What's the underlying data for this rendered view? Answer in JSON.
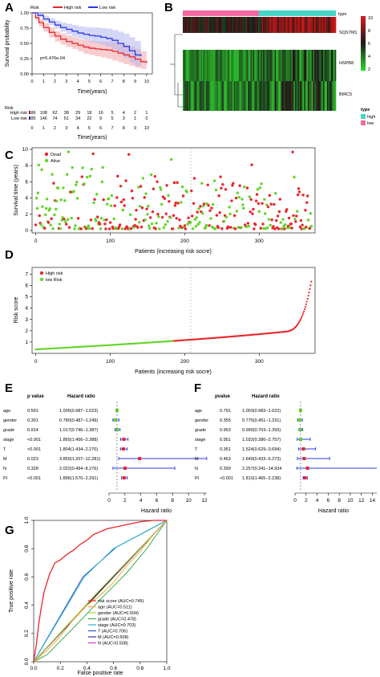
{
  "chart_data": [
    {
      "panel": "A",
      "type": "line",
      "ylabel": "Survival probability",
      "xlabel": "Time(years)",
      "legend_title": "Risk",
      "pvalue_text": "p=5.476e-04",
      "xticks": [
        0,
        1,
        2,
        3,
        4,
        5,
        6,
        7,
        8,
        9,
        10
      ],
      "yticks": [
        "0.00",
        "0.25",
        "0.50",
        "0.75",
        "1.00"
      ],
      "xlim": [
        0,
        10.5
      ],
      "ylim": [
        0,
        1
      ],
      "series": [
        {
          "name": "High risk",
          "color": "#e8262c",
          "band_color": "#f4a3a6",
          "x": [
            0,
            0.3,
            0.6,
            1,
            1.5,
            2,
            2.5,
            3,
            3.5,
            4,
            4.5,
            5,
            5.5,
            6,
            6.5,
            7,
            7.5,
            8,
            8.5,
            9,
            9.5,
            10
          ],
          "y": [
            1,
            0.92,
            0.84,
            0.76,
            0.68,
            0.62,
            0.57,
            0.53,
            0.5,
            0.47,
            0.44,
            0.42,
            0.41,
            0.4,
            0.39,
            0.37,
            0.34,
            0.31,
            0.28,
            0.24,
            0.2,
            0.18
          ],
          "lo": [
            1,
            0.88,
            0.78,
            0.69,
            0.6,
            0.53,
            0.48,
            0.44,
            0.41,
            0.37,
            0.33,
            0.31,
            0.29,
            0.27,
            0.25,
            0.22,
            0.19,
            0.16,
            0.13,
            0.1,
            0.08,
            0.07
          ],
          "hi": [
            1,
            0.96,
            0.9,
            0.83,
            0.76,
            0.7,
            0.66,
            0.63,
            0.6,
            0.57,
            0.55,
            0.54,
            0.53,
            0.53,
            0.53,
            0.52,
            0.5,
            0.48,
            0.45,
            0.41,
            0.37,
            0.33
          ]
        },
        {
          "name": "Low risk",
          "color": "#2a3ae0",
          "band_color": "#b3b7f3",
          "x": [
            0,
            0.5,
            1,
            1.5,
            2,
            2.5,
            3,
            3.5,
            4,
            4.5,
            5,
            5.5,
            6,
            6.5,
            7,
            7.5,
            8,
            8.5,
            9,
            9.5
          ],
          "y": [
            1,
            0.96,
            0.9,
            0.85,
            0.8,
            0.76,
            0.73,
            0.7,
            0.67,
            0.65,
            0.63,
            0.62,
            0.6,
            0.58,
            0.55,
            0.5,
            0.45,
            0.38,
            0.31,
            0.29
          ],
          "lo": [
            1,
            0.93,
            0.86,
            0.8,
            0.74,
            0.69,
            0.65,
            0.61,
            0.58,
            0.55,
            0.52,
            0.5,
            0.47,
            0.44,
            0.4,
            0.33,
            0.26,
            0.19,
            0.13,
            0.11
          ],
          "hi": [
            1,
            0.99,
            0.95,
            0.91,
            0.87,
            0.84,
            0.82,
            0.8,
            0.78,
            0.77,
            0.76,
            0.76,
            0.75,
            0.74,
            0.72,
            0.69,
            0.66,
            0.6,
            0.54,
            0.52
          ]
        }
      ],
      "risk_table": {
        "title": "Risk",
        "xlabel": "Time(years)",
        "rows": [
          {
            "name": "High risk",
            "color": "#e8262c",
            "values": [
              "186",
              "108",
              "62",
              "38",
              "29",
              "18",
              "16",
              "5",
              "4",
              "2",
              "1"
            ]
          },
          {
            "name": "Low risk",
            "color": "#2a3ae0",
            "values": [
              "185",
              "146",
              "74",
              "51",
              "34",
              "22",
              "9",
              "5",
              "3",
              "1",
              "0"
            ]
          }
        ]
      }
    },
    {
      "panel": "B",
      "type": "heatmap",
      "genes": [
        "SQSTM1",
        "HSPB8",
        "BIRC5"
      ],
      "legend_title": "type",
      "colorbar_ticks": [
        "10",
        "8",
        "6",
        "4",
        "2"
      ],
      "type_legend_title": "type",
      "type_levels": [
        {
          "name": "high",
          "color": "#48d4c4"
        },
        {
          "name": "low",
          "color": "#f06aa0"
        }
      ],
      "color_low": "#2ed82e",
      "color_high": "#d81e1e"
    },
    {
      "panel": "C",
      "type": "scatter",
      "ylabel": "Survival time (years)",
      "xlabel": "Patients (increasing risk socre)",
      "xticks": [
        0,
        100,
        200,
        300
      ],
      "yticks": [
        0,
        2,
        4,
        6,
        8,
        10
      ],
      "xlim": [
        -5,
        375
      ],
      "ylim": [
        -0.3,
        10.2
      ],
      "legend": [
        {
          "name": "Dead",
          "color": "#e8262c"
        },
        {
          "name": "Alive",
          "color": "#64d42a"
        }
      ],
      "n_patients": 371
    },
    {
      "panel": "D",
      "type": "scatter",
      "ylabel": "Risk score",
      "xlabel": "Patients (increasing risk socre)",
      "xticks": [
        0,
        100,
        200,
        300
      ],
      "yticks": [
        1,
        2,
        3,
        4,
        5,
        6,
        7
      ],
      "xlim": [
        -5,
        375
      ],
      "ylim": [
        0,
        7.6
      ],
      "legend": [
        {
          "name": "High risk",
          "color": "#e8262c"
        },
        {
          "name": "low Risk",
          "color": "#64d42a"
        }
      ],
      "cutoff_index": 185,
      "n_patients": 371
    },
    {
      "panel": "E",
      "type": "table",
      "header": [
        "p value",
        "Hazard ratio"
      ],
      "xlabel": "Hazard ratio",
      "xticks": [
        0,
        2,
        4,
        6,
        8,
        10,
        12
      ],
      "xlim": [
        0,
        12.3
      ],
      "rows": [
        {
          "name": "age",
          "p": "0.591",
          "hr_text": "1.005(0.987−1.023)",
          "hr": 1.005,
          "lo": 0.987,
          "hi": 1.023
        },
        {
          "name": "gender",
          "p": "0.301",
          "hr_text": "0.780(0.487−1.249)",
          "hr": 0.78,
          "lo": 0.487,
          "hi": 1.249
        },
        {
          "name": "grade",
          "p": "0.914",
          "hr_text": "1.017(0.746−1.387)",
          "hr": 1.017,
          "lo": 0.746,
          "hi": 1.387
        },
        {
          "name": "stage",
          "p": "<0.001",
          "hr_text": "1.865(1.456−2.388)",
          "hr": 1.865,
          "lo": 1.456,
          "hi": 2.388
        },
        {
          "name": "T",
          "p": "<0.001",
          "hr_text": "1.804(1.434−2.270)",
          "hr": 1.804,
          "lo": 1.434,
          "hi": 2.27
        },
        {
          "name": "M",
          "p": "0.023",
          "hr_text": "3.850(1.207−12.281)",
          "hr": 3.85,
          "lo": 1.207,
          "hi": 12.281
        },
        {
          "name": "N",
          "p": "0.328",
          "hr_text": "2.022(0.494−8.276)",
          "hr": 2.022,
          "lo": 0.494,
          "hi": 8.276
        },
        {
          "name": "PI",
          "p": "<0.001",
          "hr_text": "1.896(1.570−2.291)",
          "hr": 1.896,
          "lo": 1.57,
          "hi": 2.291
        }
      ]
    },
    {
      "panel": "F",
      "type": "table",
      "header": [
        "pvalue",
        "Hazard ratio"
      ],
      "xlabel": "Hazard ratio",
      "xticks": [
        0,
        2,
        4,
        6,
        8,
        10,
        12,
        14
      ],
      "xlim": [
        0,
        14.8
      ],
      "rows": [
        {
          "name": "age",
          "p": "0.791",
          "hr_text": "1.003(0.983−1.022)",
          "hr": 1.003,
          "lo": 0.983,
          "hi": 1.022
        },
        {
          "name": "gender",
          "p": "0.355",
          "hr_text": "0.775(0.451−1.331)",
          "hr": 0.775,
          "lo": 0.451,
          "hi": 1.331
        },
        {
          "name": "grade",
          "p": "0.953",
          "hr_text": "0.990(0.703−1.393)",
          "hr": 0.99,
          "lo": 0.703,
          "hi": 1.393
        },
        {
          "name": "stage",
          "p": "0.951",
          "hr_text": "1.032(0.386−2.757)",
          "hr": 1.032,
          "lo": 0.386,
          "hi": 2.757
        },
        {
          "name": "T",
          "p": "0.351",
          "hr_text": "1.524(0.629−3.694)",
          "hr": 1.524,
          "lo": 0.629,
          "hi": 3.694
        },
        {
          "name": "M",
          "p": "0.463",
          "hr_text": "1.649(0.433−6.273)",
          "hr": 1.649,
          "lo": 0.433,
          "hi": 6.273
        },
        {
          "name": "N",
          "p": "0.399",
          "hr_text": "2.257(0.341−14.934",
          "hr": 2.257,
          "lo": 0.341,
          "hi": 14.934
        },
        {
          "name": "PI",
          "p": "<0.001",
          "hr_text": "1.810(1.465−2.238)",
          "hr": 1.81,
          "lo": 1.465,
          "hi": 2.238
        }
      ]
    },
    {
      "panel": "G",
      "type": "line",
      "ylabel": "True positive rate",
      "xlabel": "False positive rate",
      "xticks": [
        "0.0",
        "0.2",
        "0.4",
        "0.6",
        "0.8",
        "1.0"
      ],
      "yticks": [
        "0.0",
        "0.2",
        "0.4",
        "0.6",
        "0.8",
        "1.0"
      ],
      "xlim": [
        0,
        1
      ],
      "ylim": [
        0,
        1
      ],
      "series": [
        {
          "name": "risk score (AUC=0.749)",
          "color": "#e8262c",
          "x": [
            0,
            0.02,
            0.04,
            0.06,
            0.08,
            0.1,
            0.12,
            0.14,
            0.16,
            0.2,
            0.25,
            0.3,
            0.35,
            0.4,
            0.45,
            0.5,
            0.55,
            0.6,
            0.65,
            0.7,
            0.75,
            0.8,
            0.85,
            0.9,
            1
          ],
          "y": [
            0,
            0.12,
            0.28,
            0.4,
            0.5,
            0.56,
            0.62,
            0.66,
            0.7,
            0.72,
            0.76,
            0.79,
            0.83,
            0.86,
            0.9,
            0.92,
            0.94,
            0.95,
            0.96,
            0.97,
            0.98,
            0.99,
            0.995,
            1,
            1
          ]
        },
        {
          "name": "age (AUC=0.511)",
          "color": "#f7a540",
          "x": [
            0,
            0.1,
            0.2,
            0.3,
            0.4,
            0.5,
            0.6,
            0.7,
            0.8,
            0.9,
            1
          ],
          "y": [
            0,
            0.08,
            0.18,
            0.3,
            0.4,
            0.47,
            0.56,
            0.68,
            0.78,
            0.9,
            1
          ]
        },
        {
          "name": "gender (AUC=0.504)",
          "color": "#a8d23c",
          "x": [
            0,
            0.45,
            1
          ],
          "y": [
            0,
            0.46,
            1
          ]
        },
        {
          "name": "grade (AUC=0.478)",
          "color": "#3cae50",
          "x": [
            0,
            0.1,
            0.3,
            0.5,
            0.7,
            0.85,
            1
          ],
          "y": [
            0,
            0.05,
            0.24,
            0.44,
            0.63,
            0.8,
            1
          ]
        },
        {
          "name": "stage (AUC=0.703)",
          "color": "#2ab7c8",
          "x": [
            0,
            0.38,
            0.6,
            1
          ],
          "y": [
            0,
            0.6,
            0.8,
            1
          ]
        },
        {
          "name": "T (AUC=0.706)",
          "color": "#2650c8",
          "x": [
            0,
            0.37,
            0.62,
            1
          ],
          "y": [
            0,
            0.6,
            0.81,
            1
          ]
        },
        {
          "name": "M (AUC=0.508)",
          "color": "#4a2ab0",
          "x": [
            0,
            0.5,
            1
          ],
          "y": [
            0,
            0.51,
            1
          ]
        },
        {
          "name": "N (AUC=0.508)",
          "color": "#d040c8",
          "x": [
            0,
            0.5,
            1
          ],
          "y": [
            0,
            0.508,
            1
          ]
        }
      ]
    }
  ]
}
